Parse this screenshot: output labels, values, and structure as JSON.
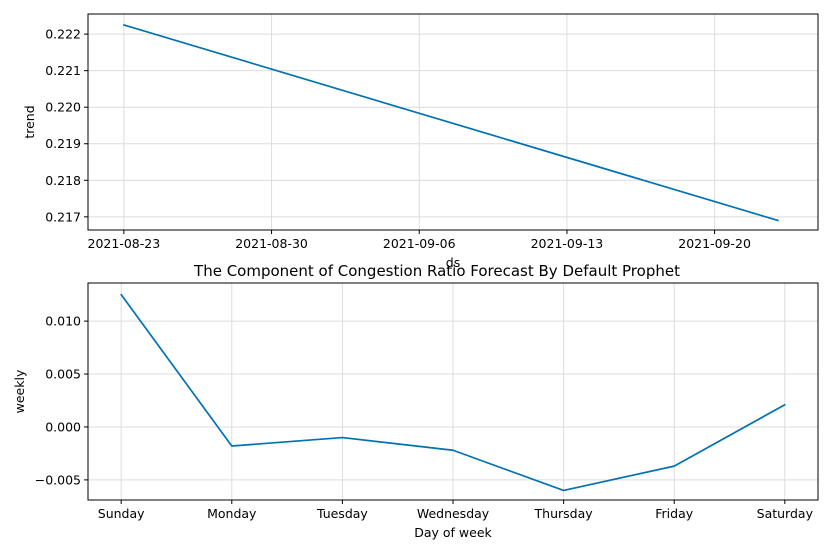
{
  "chart_data": [
    {
      "type": "line",
      "title": "",
      "xlabel": "ds",
      "ylabel": "trend",
      "x_ticks": [
        "2021-08-23",
        "2021-08-30",
        "2021-09-06",
        "2021-09-13",
        "2021-09-20"
      ],
      "x_tick_days": [
        0,
        7,
        14,
        21,
        28
      ],
      "x_range_days": [
        -1.7,
        32.9
      ],
      "y_ticks": [
        "0.217",
        "0.218",
        "0.219",
        "0.220",
        "0.221",
        "0.222"
      ],
      "y_tick_values": [
        0.217,
        0.218,
        0.219,
        0.22,
        0.221,
        0.222
      ],
      "ylim": [
        0.21664,
        0.22255
      ],
      "grid": true,
      "series": [
        {
          "name": "trend",
          "x_days": [
            0,
            31
          ],
          "values": [
            0.22225,
            0.2169
          ]
        }
      ]
    },
    {
      "type": "line",
      "title": "The Component of Congestion Ratio Forecast By Default Prophet",
      "xlabel": "Day of week",
      "ylabel": "weekly",
      "categories": [
        "Sunday",
        "Monday",
        "Tuesday",
        "Wednesday",
        "Thursday",
        "Friday",
        "Saturday"
      ],
      "x_range": [
        -0.3,
        6.3
      ],
      "y_ticks": [
        "−0.005",
        "0.000",
        "0.005",
        "0.010"
      ],
      "y_tick_values": [
        -0.005,
        0.0,
        0.005,
        0.01
      ],
      "ylim": [
        -0.0069,
        0.0136
      ],
      "grid": true,
      "series": [
        {
          "name": "weekly",
          "values": [
            0.0125,
            -0.0018,
            -0.001,
            -0.0022,
            -0.006,
            -0.0037,
            0.0021
          ]
        }
      ]
    }
  ],
  "colors": {
    "line": "#0072B2"
  }
}
